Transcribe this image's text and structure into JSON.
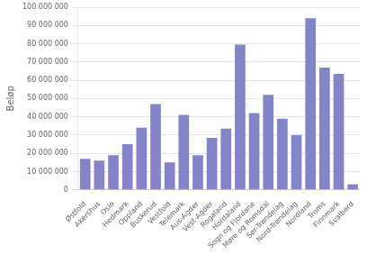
{
  "chart_data": {
    "type": "bar",
    "categories": [
      "Østfold",
      "Akershus",
      "Oslo",
      "Hedmark",
      "Oppland",
      "Buskerud",
      "Vestfold",
      "Telemark",
      "Aus-Agder",
      "Vest-Agder",
      "Rogaland",
      "Hordaland",
      "Sogn og Fjordane",
      "Møre og Romsdal",
      "Sør-Trøndelag",
      "Nord-Trøndelag",
      "Nordland",
      "Troms",
      "Finnmark",
      "Svalbard"
    ],
    "values": [
      17000000,
      16000000,
      19000000,
      25000000,
      34000000,
      47000000,
      15000000,
      41000000,
      19000000,
      28500000,
      33500000,
      79500000,
      42000000,
      52000000,
      39000000,
      30000000,
      94000000,
      67000000,
      63500000,
      3000000
    ],
    "color": "#8484c8",
    "ylabel": "Beløp",
    "ylim": [
      0,
      100000000
    ],
    "yticks": [
      0,
      {
        "value": 10000000,
        "label": "10 000 000"
      },
      {
        "value": 20000000,
        "label": "20 000 000"
      },
      {
        "value": 30000000,
        "label": "30 000 000"
      },
      {
        "value": 40000000,
        "label": "40 000 000"
      },
      {
        "value": 50000000,
        "label": "50 000 000"
      },
      {
        "value": 60000000,
        "label": "60 000 000"
      },
      {
        "value": 70000000,
        "label": "70 000 000"
      },
      {
        "value": 80000000,
        "label": "80 000 000"
      },
      {
        "value": 90000000,
        "label": "90 000 000"
      },
      {
        "value": 100000000,
        "label": "100 000 000"
      }
    ],
    "grid": true
  }
}
